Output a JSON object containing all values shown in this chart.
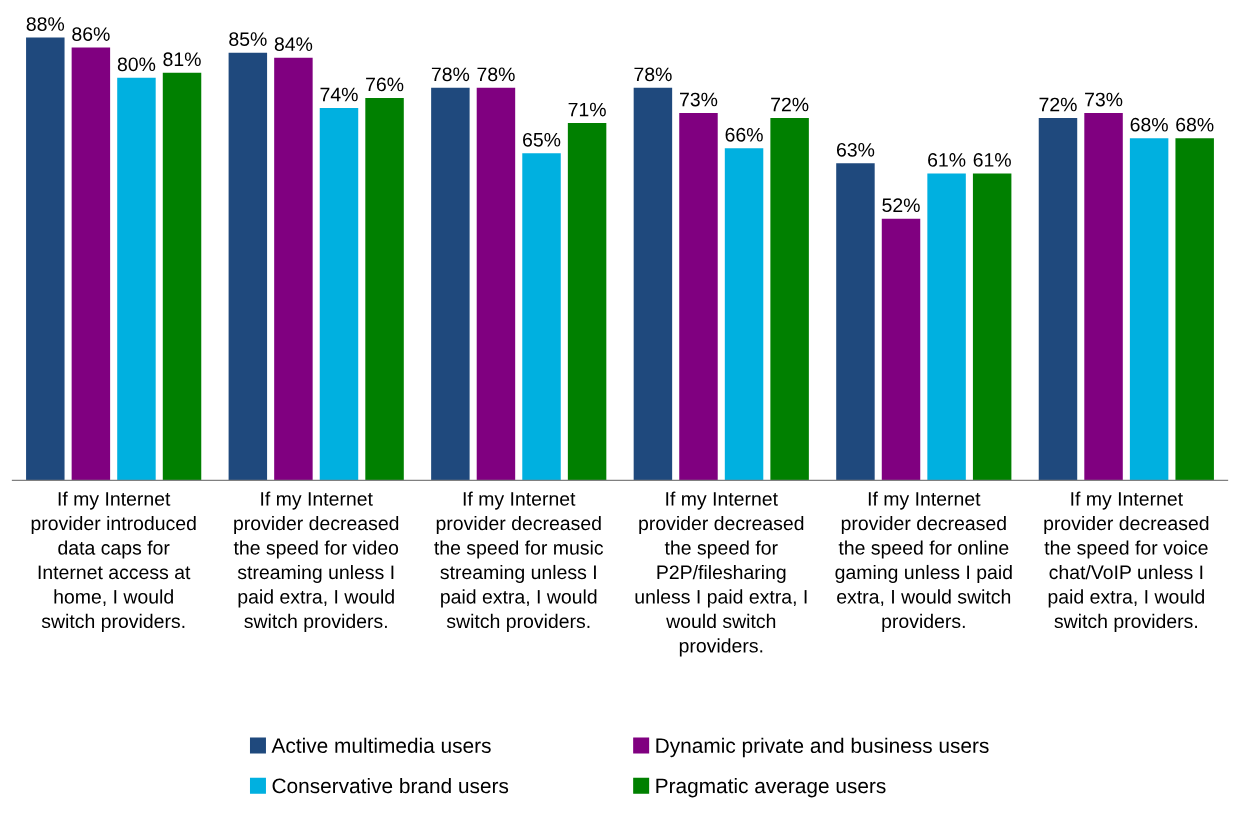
{
  "chart_data": {
    "type": "bar",
    "categories": [
      "If my Internet\nprovider introduced\ndata caps for\nInternet access at\nhome, I would\nswitch providers.",
      "If my Internet\nprovider decreased\nthe speed for video\nstreaming unless I\npaid extra, I would\nswitch providers.",
      "If my Internet\nprovider decreased\nthe speed for music\nstreaming unless I\npaid extra, I would\nswitch providers.",
      "If my Internet\nprovider decreased\nthe speed for\nP2P/filesharing\nunless I paid extra, I\nwould switch\nproviders.",
      "If my Internet\nprovider decreased\nthe speed for online\ngaming unless I paid\nextra, I would switch\nproviders.",
      "If my Internet\nprovider decreased\nthe speed for voice\nchat/VoIP unless I\npaid extra, I would\nswitch providers."
    ],
    "series": [
      {
        "name": "Active multimedia users",
        "color": "#1f497d",
        "values": [
          88,
          85,
          78,
          78,
          63,
          72
        ],
        "value_labels": [
          "88%",
          "85%",
          "78%",
          "78%",
          "63%",
          "72%"
        ]
      },
      {
        "name": "Dynamic private and business users",
        "color": "#800080",
        "values": [
          86,
          84,
          78,
          73,
          52,
          73
        ],
        "value_labels": [
          "86%",
          "84%",
          "78%",
          "73%",
          "52%",
          "73%"
        ]
      },
      {
        "name": "Conservative brand users",
        "color": "#00b0e0",
        "values": [
          80,
          74,
          65,
          66,
          61,
          68
        ],
        "value_labels": [
          "80%",
          "74%",
          "65%",
          "66%",
          "61%",
          "68%"
        ]
      },
      {
        "name": "Pragmatic average users",
        "color": "#008000",
        "values": [
          81,
          76,
          71,
          72,
          61,
          68
        ],
        "value_labels": [
          "81%",
          "76%",
          "71%",
          "72%",
          "61%",
          "68%"
        ]
      }
    ],
    "grid": false,
    "legend": "bottom"
  }
}
